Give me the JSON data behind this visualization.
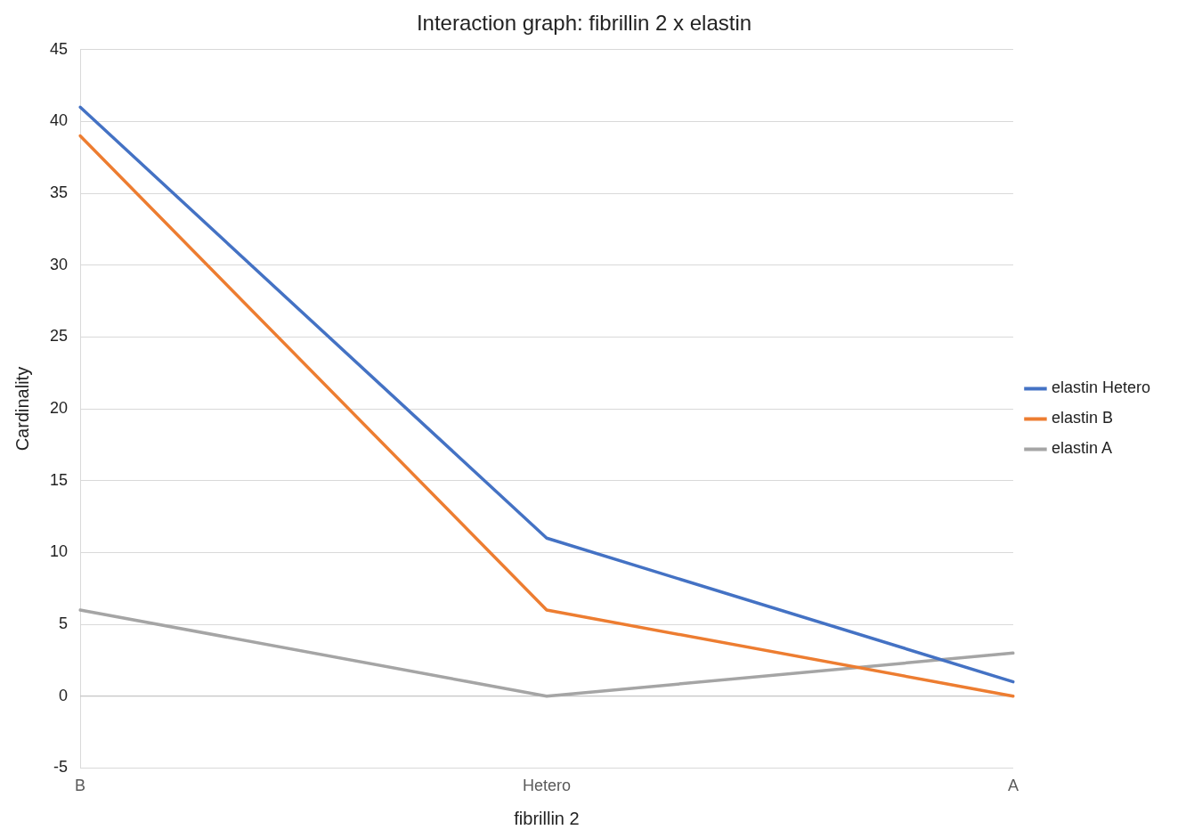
{
  "chart_data": {
    "type": "line",
    "title": "Interaction graph: fibrillin 2 x elastin",
    "xlabel": "fibrillin 2",
    "ylabel": "Cardinality",
    "categories": [
      "B",
      "Hetero",
      "A"
    ],
    "series": [
      {
        "name": "elastin Hetero",
        "color": "#4472c4",
        "values": [
          41,
          11,
          1
        ]
      },
      {
        "name": "elastin B",
        "color": "#ed7d31",
        "values": [
          39,
          6,
          0
        ]
      },
      {
        "name": "elastin A",
        "color": "#a5a5a5",
        "values": [
          6,
          0,
          3
        ]
      }
    ],
    "ylim": [
      -5,
      45
    ],
    "yticks": [
      -5,
      0,
      5,
      10,
      15,
      20,
      25,
      30,
      35,
      40,
      45
    ],
    "grid": "y",
    "legend": "right",
    "marker": "none",
    "line_style": "solid"
  }
}
